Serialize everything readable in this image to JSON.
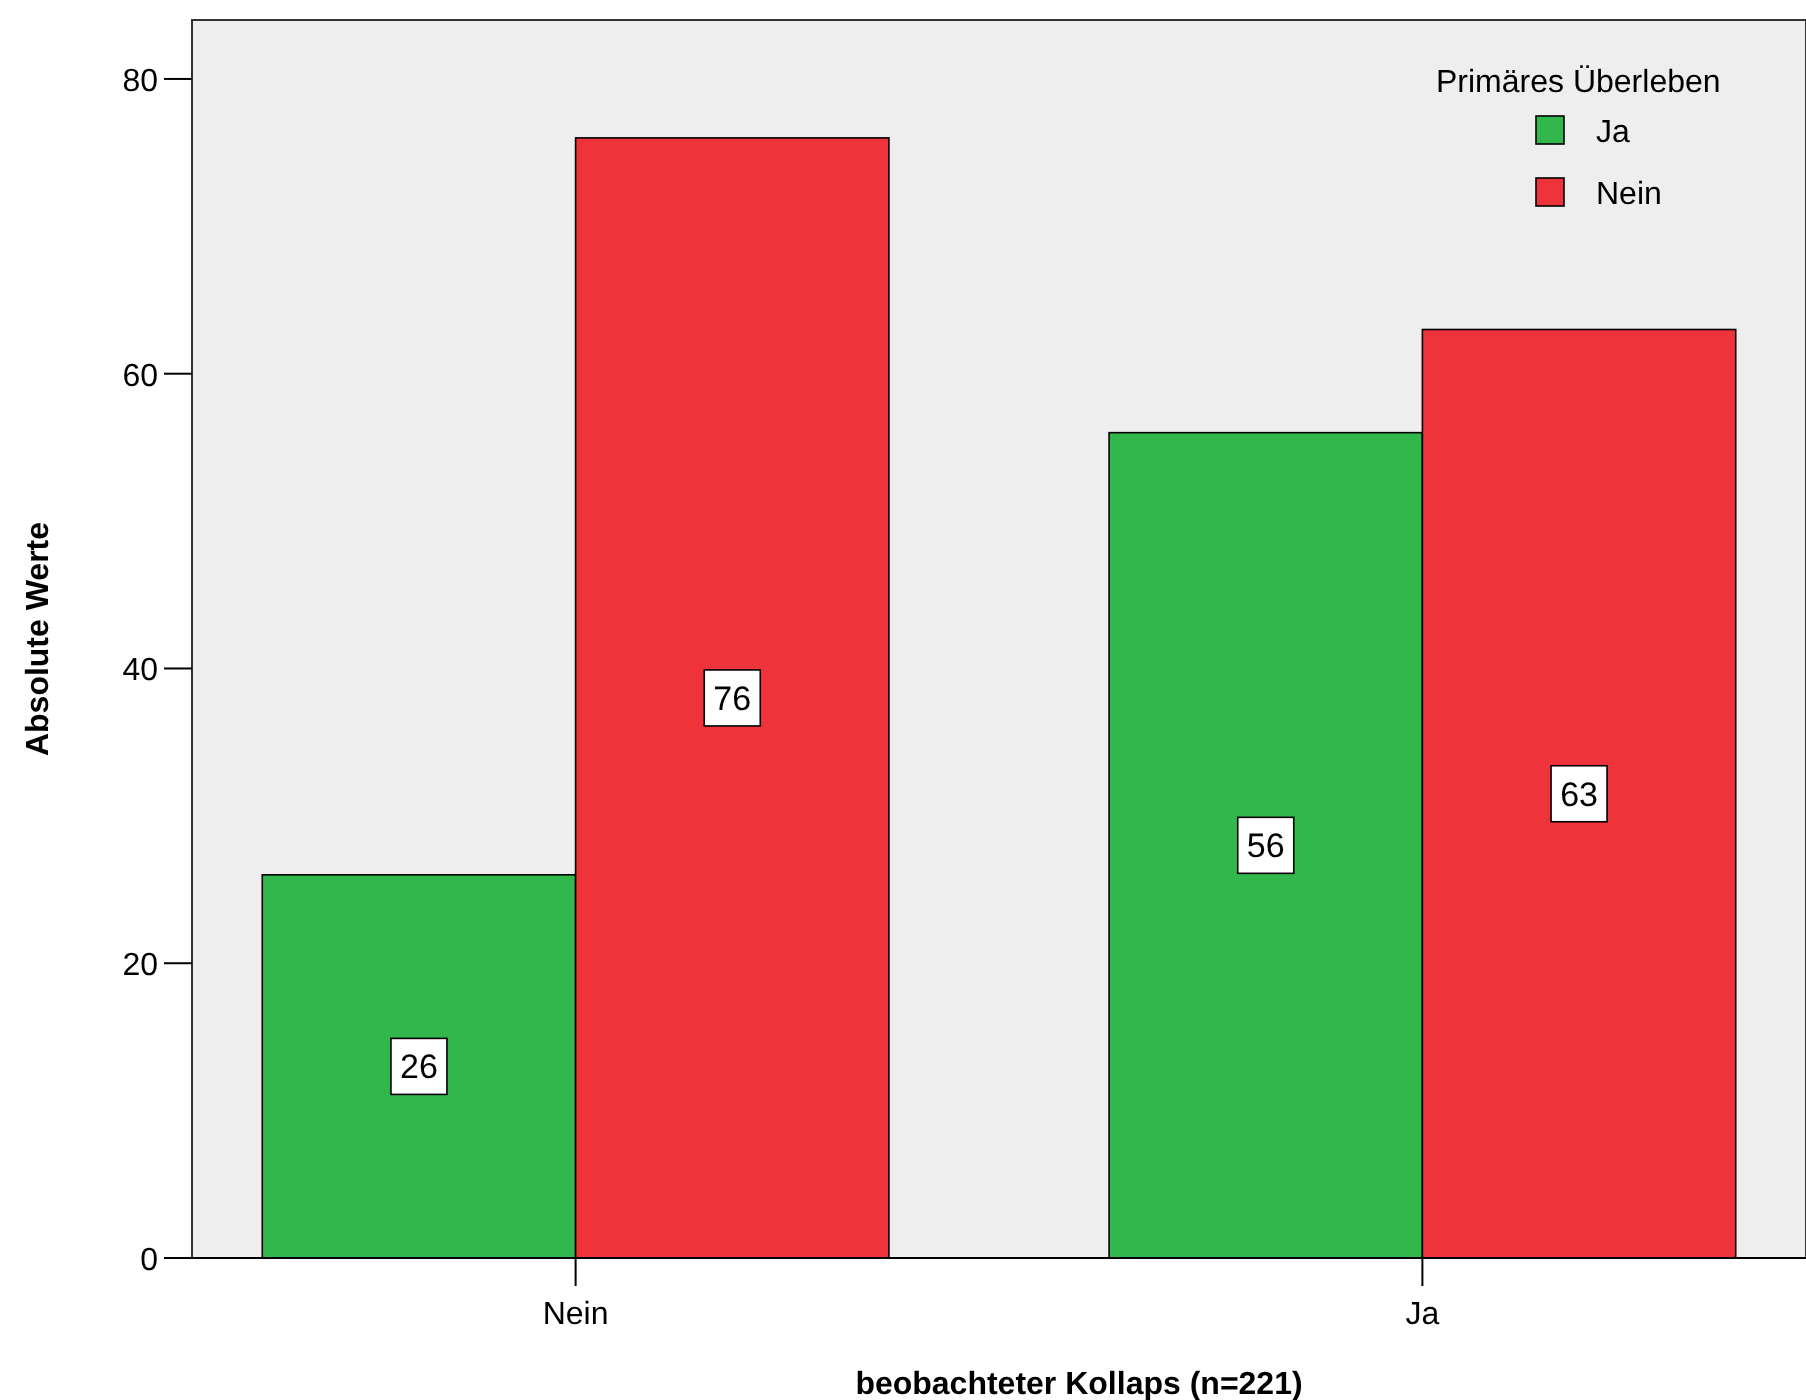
{
  "chart_data": {
    "type": "bar",
    "xlabel": "beobachteter Kollaps (n=221)",
    "ylabel": "Absolute Werte",
    "legend_title": "Primäres Überleben",
    "categories": [
      "Nein",
      "Ja"
    ],
    "series": [
      {
        "name": "Ja",
        "color": "#31b74b",
        "values": [
          26,
          56
        ]
      },
      {
        "name": "Nein",
        "color": "#ef333a",
        "values": [
          76,
          63
        ]
      }
    ],
    "ylim": [
      0,
      84
    ],
    "yticks": [
      0,
      20,
      40,
      60,
      80
    ],
    "grid": false,
    "legend": "top right",
    "data_labels": true
  }
}
